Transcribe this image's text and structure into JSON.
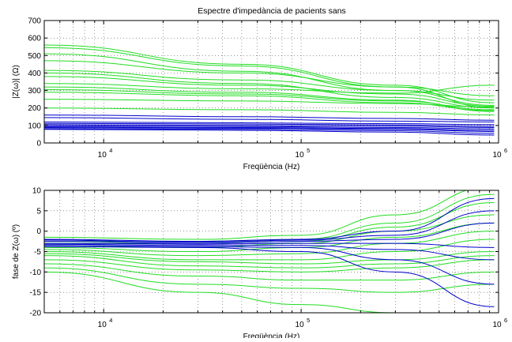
{
  "figure": {
    "title": "Espectre d'impedància de pacients sans",
    "background": "#ffffff"
  },
  "chart_data": [
    {
      "type": "line",
      "title": "Espectre d'impedància de pacients sans",
      "xlabel": "Freqüència (Hz)",
      "ylabel": "|Z(ω)| (Ω)",
      "xscale": "log",
      "xlim": [
        5000,
        1000000
      ],
      "ylim": [
        0,
        700
      ],
      "xticks": [
        10000,
        100000,
        1000000
      ],
      "xtick_labels": [
        {
          "base": "10",
          "exp": "4"
        },
        {
          "base": "10",
          "exp": "5"
        },
        {
          "base": "10",
          "exp": "6"
        }
      ],
      "yticks": [
        0,
        100,
        200,
        300,
        400,
        500,
        600,
        700
      ],
      "ytick_labels": [
        "0",
        "100",
        "200",
        "300",
        "400",
        "500",
        "600",
        "700"
      ],
      "grid": "dotted",
      "colors": {
        "green": "#22dd22",
        "blue": "#0000cc"
      },
      "series": [
        {
          "color": "green",
          "x": [
            5000,
            50000,
            300000,
            950000
          ],
          "y": [
            560,
            450,
            330,
            230
          ]
        },
        {
          "color": "green",
          "x": [
            5000,
            50000,
            300000,
            950000
          ],
          "y": [
            545,
            440,
            320,
            200
          ]
        },
        {
          "color": "green",
          "x": [
            5000,
            50000,
            300000,
            950000
          ],
          "y": [
            510,
            410,
            300,
            215
          ]
        },
        {
          "color": "green",
          "x": [
            5000,
            50000,
            300000,
            950000
          ],
          "y": [
            470,
            400,
            320,
            270
          ]
        },
        {
          "color": "green",
          "x": [
            5000,
            50000,
            300000,
            950000
          ],
          "y": [
            415,
            360,
            300,
            245
          ]
        },
        {
          "color": "green",
          "x": [
            5000,
            50000,
            300000,
            950000
          ],
          "y": [
            400,
            340,
            260,
            200
          ]
        },
        {
          "color": "green",
          "x": [
            5000,
            50000,
            300000,
            950000
          ],
          "y": [
            380,
            330,
            280,
            210
          ]
        },
        {
          "color": "green",
          "x": [
            5000,
            50000,
            300000,
            950000
          ],
          "y": [
            340,
            310,
            285,
            330
          ]
        },
        {
          "color": "green",
          "x": [
            5000,
            50000,
            300000,
            950000
          ],
          "y": [
            320,
            290,
            245,
            180
          ]
        },
        {
          "color": "green",
          "x": [
            5000,
            50000,
            300000,
            950000
          ],
          "y": [
            305,
            280,
            240,
            190
          ]
        },
        {
          "color": "green",
          "x": [
            5000,
            50000,
            300000,
            950000
          ],
          "y": [
            290,
            270,
            230,
            185
          ]
        },
        {
          "color": "green",
          "x": [
            5000,
            50000,
            300000,
            950000
          ],
          "y": [
            250,
            240,
            225,
            205
          ]
        },
        {
          "color": "green",
          "x": [
            5000,
            50000,
            300000,
            950000
          ],
          "y": [
            200,
            190,
            175,
            160
          ]
        },
        {
          "color": "blue",
          "x": [
            5000,
            50000,
            300000,
            950000
          ],
          "y": [
            160,
            150,
            140,
            130
          ]
        },
        {
          "color": "blue",
          "x": [
            5000,
            50000,
            300000,
            950000
          ],
          "y": [
            145,
            135,
            125,
            120
          ]
        },
        {
          "color": "blue",
          "x": [
            5000,
            50000,
            300000,
            950000
          ],
          "y": [
            120,
            115,
            110,
            105
          ]
        },
        {
          "color": "blue",
          "x": [
            5000,
            50000,
            300000,
            950000
          ],
          "y": [
            112,
            108,
            103,
            95
          ]
        },
        {
          "color": "blue",
          "x": [
            5000,
            50000,
            300000,
            950000
          ],
          "y": [
            105,
            100,
            96,
            88
          ]
        },
        {
          "color": "blue",
          "x": [
            5000,
            50000,
            300000,
            950000
          ],
          "y": [
            98,
            94,
            88,
            80
          ]
        },
        {
          "color": "blue",
          "x": [
            5000,
            50000,
            300000,
            950000
          ],
          "y": [
            92,
            88,
            82,
            72
          ]
        },
        {
          "color": "blue",
          "x": [
            5000,
            50000,
            300000,
            950000
          ],
          "y": [
            88,
            84,
            78,
            65
          ]
        },
        {
          "color": "blue",
          "x": [
            5000,
            50000,
            300000,
            950000
          ],
          "y": [
            82,
            78,
            70,
            55
          ]
        },
        {
          "color": "blue",
          "x": [
            5000,
            50000,
            300000,
            950000
          ],
          "y": [
            78,
            72,
            62,
            45
          ]
        }
      ]
    },
    {
      "type": "line",
      "title": "",
      "xlabel": "Freqüència (Hz)",
      "ylabel": "fase de Z(ω) (º)",
      "xscale": "log",
      "xlim": [
        5000,
        1000000
      ],
      "ylim": [
        -20,
        10
      ],
      "xticks": [
        10000,
        100000,
        1000000
      ],
      "xtick_labels": [
        {
          "base": "10",
          "exp": "4"
        },
        {
          "base": "10",
          "exp": "5"
        },
        {
          "base": "10",
          "exp": "6"
        }
      ],
      "yticks": [
        -20,
        -15,
        -10,
        -5,
        0,
        5,
        10
      ],
      "ytick_labels": [
        "-20",
        "-15",
        "-10",
        "-5",
        "0",
        "5",
        "10"
      ],
      "grid": "dotted",
      "colors": {
        "green": "#22dd22",
        "blue": "#0000cc"
      },
      "series": [
        {
          "color": "green",
          "x": [
            5000,
            30000,
            100000,
            300000,
            950000
          ],
          "y": [
            -1.5,
            -2,
            -1,
            4,
            11
          ]
        },
        {
          "color": "green",
          "x": [
            5000,
            30000,
            100000,
            300000,
            950000
          ],
          "y": [
            -2.5,
            -2.5,
            -2,
            2,
            9
          ]
        },
        {
          "color": "green",
          "x": [
            5000,
            30000,
            100000,
            300000,
            950000
          ],
          "y": [
            -3,
            -3,
            -2.5,
            1,
            7
          ]
        },
        {
          "color": "green",
          "x": [
            5000,
            30000,
            100000,
            300000,
            950000
          ],
          "y": [
            -3.5,
            -4,
            -3,
            0,
            4
          ]
        },
        {
          "color": "green",
          "x": [
            5000,
            30000,
            100000,
            300000,
            950000
          ],
          "y": [
            -4,
            -5,
            -4,
            -1.5,
            2
          ]
        },
        {
          "color": "green",
          "x": [
            5000,
            30000,
            100000,
            300000,
            950000
          ],
          "y": [
            -4.5,
            -6,
            -5.5,
            -3,
            0
          ]
        },
        {
          "color": "green",
          "x": [
            5000,
            30000,
            100000,
            300000,
            950000
          ],
          "y": [
            -5,
            -7,
            -7,
            -5,
            -2
          ]
        },
        {
          "color": "green",
          "x": [
            5000,
            30000,
            100000,
            300000,
            950000
          ],
          "y": [
            -5.5,
            -7.5,
            -8,
            -7,
            -5
          ]
        },
        {
          "color": "green",
          "x": [
            5000,
            30000,
            100000,
            300000,
            950000
          ],
          "y": [
            -6,
            -8.5,
            -9,
            -8,
            -6
          ]
        },
        {
          "color": "green",
          "x": [
            5000,
            30000,
            100000,
            300000,
            950000
          ],
          "y": [
            -7,
            -9.5,
            -10,
            -9,
            -7
          ]
        },
        {
          "color": "green",
          "x": [
            5000,
            30000,
            100000,
            300000,
            950000
          ],
          "y": [
            -8,
            -11,
            -12,
            -12,
            -10
          ]
        },
        {
          "color": "green",
          "x": [
            5000,
            30000,
            100000,
            300000,
            950000
          ],
          "y": [
            -9,
            -13,
            -14,
            -15,
            -13
          ]
        },
        {
          "color": "green",
          "x": [
            5000,
            30000,
            100000,
            300000,
            950000
          ],
          "y": [
            -10,
            -15,
            -18,
            -20,
            -20
          ]
        },
        {
          "color": "blue",
          "x": [
            5000,
            30000,
            100000,
            300000,
            950000
          ],
          "y": [
            -2,
            -2.5,
            -2,
            0,
            8
          ]
        },
        {
          "color": "blue",
          "x": [
            5000,
            30000,
            100000,
            300000,
            950000
          ],
          "y": [
            -2.2,
            -2.7,
            -2.2,
            -1,
            5
          ]
        },
        {
          "color": "blue",
          "x": [
            5000,
            30000,
            100000,
            300000,
            950000
          ],
          "y": [
            -2.5,
            -3,
            -2.5,
            -2,
            2
          ]
        },
        {
          "color": "blue",
          "x": [
            5000,
            30000,
            100000,
            300000,
            950000
          ],
          "y": [
            -3,
            -3.2,
            -3,
            -3,
            -4
          ]
        },
        {
          "color": "blue",
          "x": [
            5000,
            30000,
            100000,
            300000,
            950000
          ],
          "y": [
            -3.2,
            -3.5,
            -3.5,
            -4.5,
            -7
          ]
        },
        {
          "color": "blue",
          "x": [
            5000,
            30000,
            100000,
            300000,
            950000
          ],
          "y": [
            -3.5,
            -3.8,
            -4,
            -7,
            -13
          ]
        },
        {
          "color": "blue",
          "x": [
            5000,
            30000,
            100000,
            300000,
            950000
          ],
          "y": [
            -3.8,
            -4,
            -5,
            -10,
            -18.5
          ]
        }
      ]
    }
  ]
}
